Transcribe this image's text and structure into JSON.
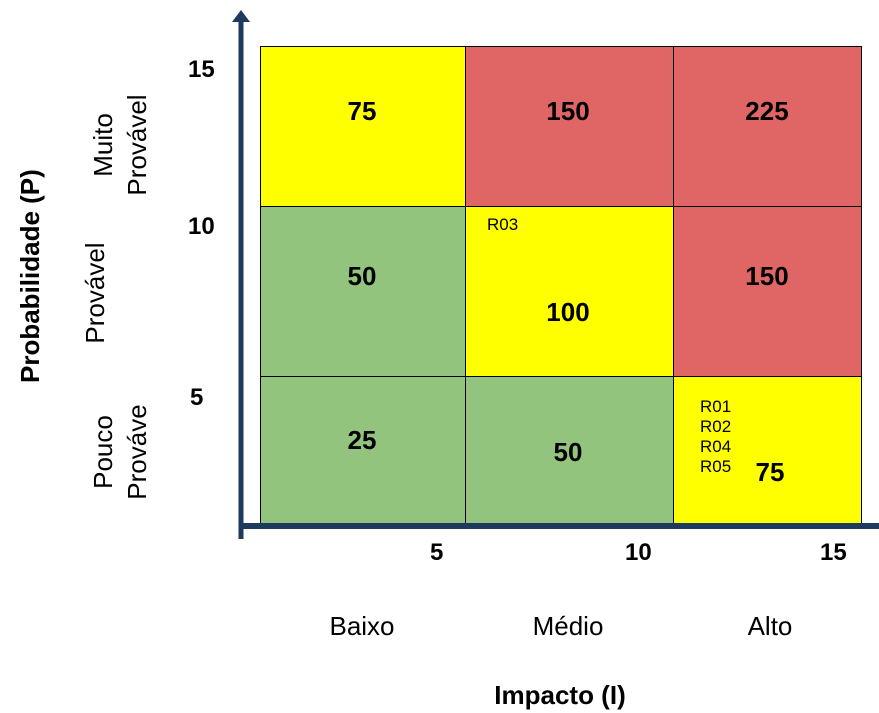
{
  "chart_data": {
    "type": "heatmap",
    "xlabel": "Impacto (I)",
    "ylabel": "Probabilidade (P)",
    "x_ticks": [
      "5",
      "10",
      "15"
    ],
    "y_ticks": [
      "15",
      "10",
      "5"
    ],
    "x_categories": [
      "Baixo",
      "Médio",
      "Alto"
    ],
    "y_categories": [
      {
        "line1": "Muito",
        "line2": "Provável"
      },
      {
        "line1": "Provável",
        "line2": ""
      },
      {
        "line1": "Pouco",
        "line2": "Prováve"
      }
    ],
    "rows": [
      [
        {
          "value": "75",
          "color": "#FFFF00",
          "risks": []
        },
        {
          "value": "150",
          "color": "#E06666",
          "risks": []
        },
        {
          "value": "225",
          "color": "#E06666",
          "risks": []
        }
      ],
      [
        {
          "value": "50",
          "color": "#93C47D",
          "risks": []
        },
        {
          "value": "100",
          "color": "#FFFF00",
          "risks": [
            "R03"
          ]
        },
        {
          "value": "150",
          "color": "#E06666",
          "risks": []
        }
      ],
      [
        {
          "value": "25",
          "color": "#93C47D",
          "risks": []
        },
        {
          "value": "50",
          "color": "#93C47D",
          "risks": []
        },
        {
          "value": "75",
          "color": "#FFFF00",
          "risks": [
            "R01",
            "R02",
            "R04",
            "R05"
          ]
        }
      ]
    ]
  },
  "colors": {
    "axis": "#1F3A5F"
  }
}
